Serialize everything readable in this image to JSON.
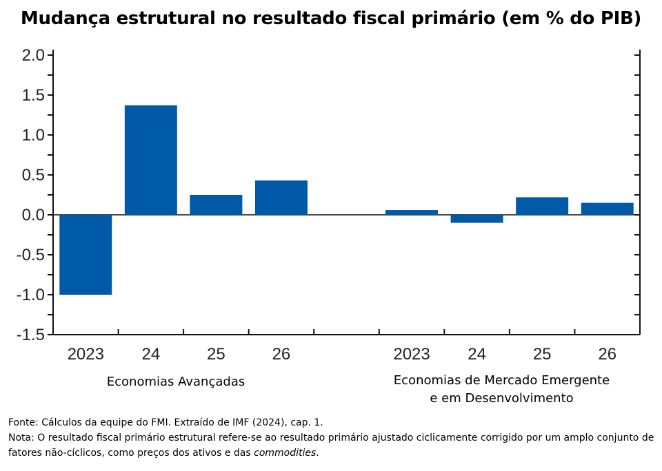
{
  "chart_data": {
    "type": "bar",
    "title": "Mudança estrutural no resultado fiscal primário (em % do PIB)",
    "ylim": [
      -1.5,
      2.0
    ],
    "yticks": [
      "2.0",
      "1.5",
      "1.0",
      "0.5",
      "0.0",
      "-0.5",
      "-1.0",
      "-1.5"
    ],
    "bar_color": "#005aa8",
    "groups": [
      {
        "name": "Economias Avançadas",
        "categories": [
          "2023",
          "24",
          "25",
          "26"
        ],
        "values": [
          -1.0,
          1.37,
          0.25,
          0.43
        ]
      },
      {
        "name": "Economias de Mercado Emergente e em Desenvolvimento",
        "name_lines": [
          "Economias de Mercado Emergente",
          "e em Desenvolvimento"
        ],
        "categories": [
          "2023",
          "24",
          "25",
          "26"
        ],
        "values": [
          0.06,
          -0.1,
          0.22,
          0.15
        ]
      }
    ]
  },
  "notes": {
    "source": "Fonte: Cálculos da equipe do FMI. Extraído de IMF (2024), cap. 1.",
    "note_main": "Nota: O resultado fiscal primário estrutural refere-se ao resultado primário ajustado ciclicamente corrigido por um amplo conjunto de fatores não-cíclicos, como preços dos ativos e das ",
    "note_italic": "commodities",
    "note_end": "."
  }
}
